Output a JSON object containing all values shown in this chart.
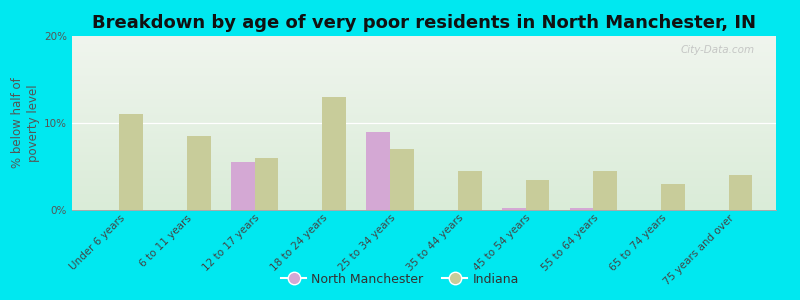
{
  "title": "Breakdown by age of very poor residents in North Manchester, IN",
  "ylabel": "% below half of\npoverty level",
  "categories": [
    "Under 6 years",
    "6 to 11 years",
    "12 to 17 years",
    "18 to 24 years",
    "25 to 34 years",
    "35 to 44 years",
    "45 to 54 years",
    "55 to 64 years",
    "65 to 74 years",
    "75 years and over"
  ],
  "north_manchester": [
    0,
    0,
    5.5,
    0,
    9.0,
    0,
    0.2,
    0.2,
    0,
    0
  ],
  "indiana": [
    11.0,
    8.5,
    6.0,
    13.0,
    7.0,
    4.5,
    3.5,
    4.5,
    3.0,
    4.0
  ],
  "nm_color": "#d4a8d4",
  "indiana_color": "#c8cc9a",
  "background_outer": "#00e8f0",
  "background_plot_color1": "#daecd8",
  "background_plot_color2": "#f0f5ee",
  "ylim": [
    0,
    20
  ],
  "yticks": [
    0,
    10,
    20
  ],
  "ytick_labels": [
    "0%",
    "10%",
    "20%"
  ],
  "bar_width": 0.35,
  "title_fontsize": 13,
  "axis_label_fontsize": 8.5,
  "tick_fontsize": 7.5,
  "legend_fontsize": 9,
  "watermark": "City-Data.com"
}
